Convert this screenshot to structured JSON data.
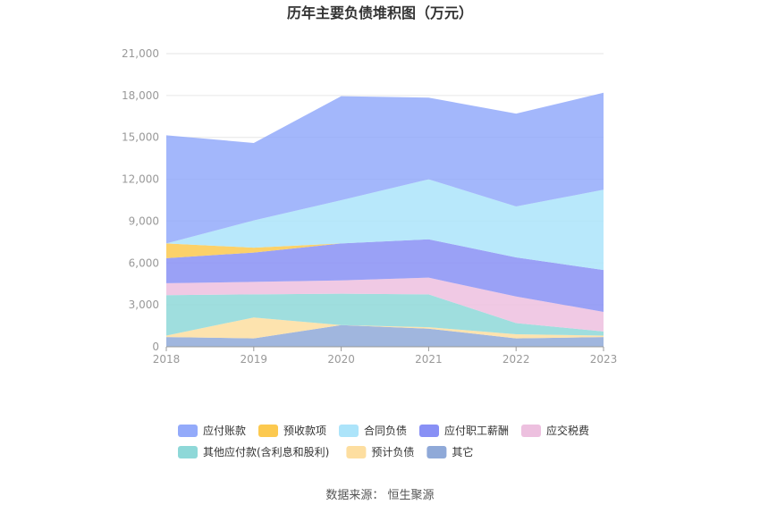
{
  "chart_data": {
    "type": "area",
    "stacked": true,
    "title": "历年主要负债堆积图（万元）",
    "source": "数据来源：  恒生聚源",
    "categories": [
      "2018",
      "2019",
      "2020",
      "2021",
      "2022",
      "2023"
    ],
    "ylim": [
      0,
      21000
    ],
    "yticks": [
      "0",
      "3,000",
      "6,000",
      "9,000",
      "12,000",
      "15,000",
      "18,000",
      "21,000"
    ],
    "ytick_values": [
      0,
      3000,
      6000,
      9000,
      12000,
      15000,
      18000,
      21000
    ],
    "grid": true,
    "legend_position": "bottom",
    "series": [
      {
        "name": "其它",
        "color": "#8fa9d8",
        "values": [
          700,
          600,
          1550,
          1300,
          600,
          700
        ]
      },
      {
        "name": "预计负债",
        "color": "#fddea0",
        "values": [
          100,
          1500,
          0,
          100,
          300,
          100
        ]
      },
      {
        "name": "其他应付款(含利息和股利)",
        "color": "#8ed8d8",
        "values": [
          2900,
          1650,
          2250,
          2350,
          800,
          300
        ]
      },
      {
        "name": "应交税费",
        "color": "#edc0df",
        "values": [
          850,
          900,
          950,
          1200,
          1900,
          1400
        ]
      },
      {
        "name": "应付职工薪酬",
        "color": "#8890f5",
        "values": [
          1800,
          2100,
          2650,
          2750,
          2800,
          3000
        ]
      },
      {
        "name": "预收款项",
        "color": "#fcc94f",
        "values": [
          1050,
          350,
          0,
          0,
          0,
          0
        ]
      },
      {
        "name": "合同负债",
        "color": "#ace4fa",
        "values": [
          0,
          1950,
          3100,
          4300,
          3650,
          5750
        ]
      },
      {
        "name": "应付账款",
        "color": "#93aafa",
        "values": [
          7750,
          5550,
          7450,
          5850,
          6650,
          6950
        ]
      }
    ],
    "legend_order": [
      "应付账款",
      "预收款项",
      "合同负债",
      "应付职工薪酬",
      "应交税费",
      "其他应付款(含利息和股利)",
      "预计负债",
      "其它"
    ]
  }
}
